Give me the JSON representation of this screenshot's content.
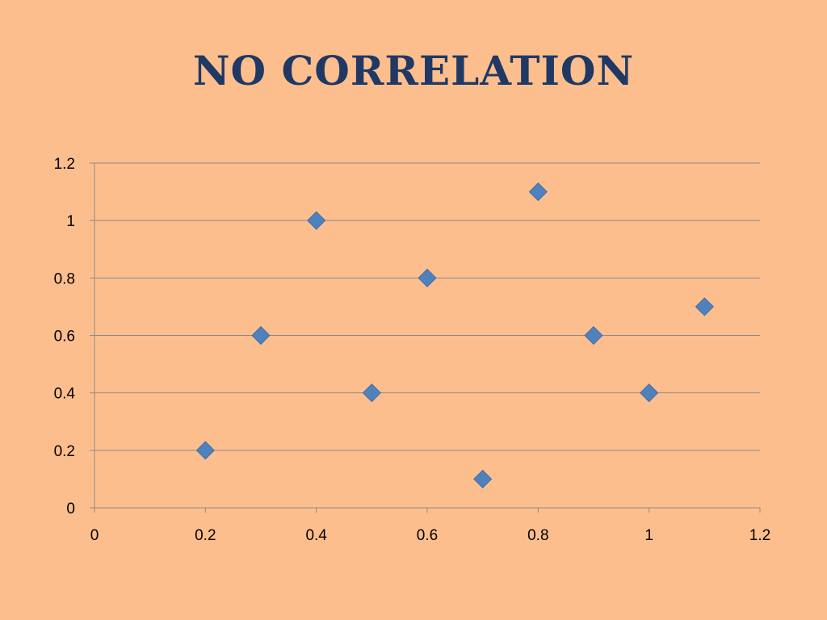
{
  "title": "NO CORRELATION",
  "chart_data": {
    "type": "scatter",
    "title": "NO CORRELATION",
    "xlabel": "",
    "ylabel": "",
    "xlim": [
      0,
      1.2
    ],
    "ylim": [
      0,
      1.2
    ],
    "x_ticks": [
      "0",
      "0.2",
      "0.4",
      "0.6",
      "0.8",
      "1",
      "1.2"
    ],
    "y_ticks": [
      "0",
      "0.2",
      "0.4",
      "0.6",
      "0.8",
      "1",
      "1.2"
    ],
    "grid": "horizontal",
    "legend": "none",
    "marker": "diamond",
    "series": [
      {
        "points": [
          {
            "x": 0.2,
            "y": 0.2
          },
          {
            "x": 0.3,
            "y": 0.6
          },
          {
            "x": 0.4,
            "y": 1.0
          },
          {
            "x": 0.5,
            "y": 0.4
          },
          {
            "x": 0.6,
            "y": 0.8
          },
          {
            "x": 0.7,
            "y": 0.1
          },
          {
            "x": 0.8,
            "y": 1.1
          },
          {
            "x": 0.9,
            "y": 0.6
          },
          {
            "x": 1.0,
            "y": 0.4
          },
          {
            "x": 1.1,
            "y": 0.7
          }
        ]
      }
    ],
    "colors": {
      "marker": "#4F81BD",
      "gridline": "#8C8C8C",
      "axis": "#8C8C8C",
      "background": "#FDBE8E",
      "title": "#1F3864"
    }
  }
}
